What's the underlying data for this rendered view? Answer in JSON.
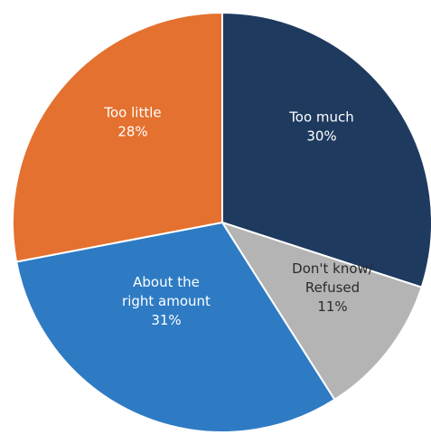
{
  "chart_data": {
    "type": "pie",
    "title": "",
    "start_angle_deg": 0,
    "direction": "clockwise",
    "slices": [
      {
        "label_lines": [
          "Too much"
        ],
        "value": 30,
        "value_label": "30%",
        "color": "#1e3a5f",
        "label_color": "#ffffff"
      },
      {
        "label_lines": [
          "Don't know/",
          "Refused"
        ],
        "value": 11,
        "value_label": "11%",
        "color": "#b4b4b4",
        "label_color": "#2b2b2b"
      },
      {
        "label_lines": [
          "About the",
          "right amount"
        ],
        "value": 31,
        "value_label": "31%",
        "color": "#2e7bc4",
        "label_color": "#ffffff"
      },
      {
        "label_lines": [
          "Too little"
        ],
        "value": 28,
        "value_label": "28%",
        "color": "#e4712f",
        "label_color": "#ffffff"
      }
    ]
  }
}
